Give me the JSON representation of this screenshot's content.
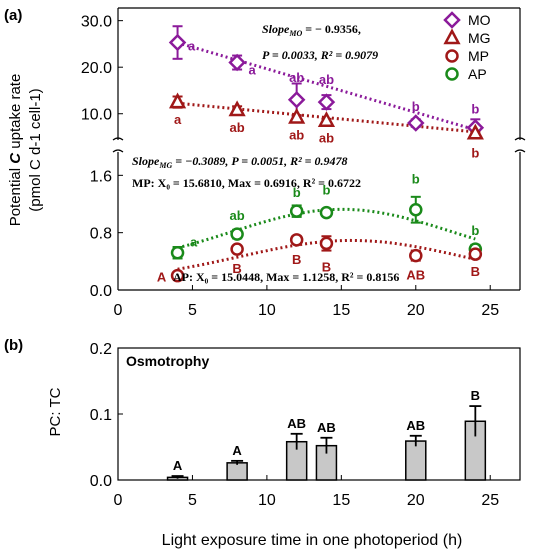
{
  "figure": {
    "ylabel_line1": "Potential ",
    "ylabel_C": "C",
    "ylabel_line1b": " uptake rate",
    "ylabel_line2": "(pmol C d-1 cell-1)",
    "xlabel": "Light exposure time in one photoperiod (h)"
  },
  "chart_data": [
    {
      "panel": "(a)",
      "type": "scatter",
      "x_ticks": [
        "0",
        "5",
        "10",
        "15",
        "20",
        "25"
      ],
      "xlim": [
        0,
        27
      ],
      "upper": {
        "ylim": [
          5.0,
          31.0
        ],
        "y_ticks": [
          "10.0",
          "20.0",
          "30.0"
        ],
        "series": [
          {
            "name": "MO",
            "marker": "diamond",
            "color": "#8b1a9a",
            "x": [
              4,
              8,
              12,
              14,
              20,
              24
            ],
            "y": [
              25.3,
              21.0,
              13.0,
              12.5,
              8.0,
              7.0
            ],
            "err": [
              3.5,
              1.5,
              3.5,
              1.5,
              0.8,
              1.8
            ],
            "letters": [
              "a",
              "a",
              "ab",
              "ab",
              "b",
              "b"
            ]
          },
          {
            "name": "MG",
            "marker": "triangle",
            "color": "#a01818",
            "x": [
              4,
              8,
              12,
              14,
              24
            ],
            "y": [
              12.5,
              10.8,
              9.2,
              8.5,
              5.8
            ],
            "err": [
              1.2,
              0.8,
              0.5,
              0.4,
              0.3
            ],
            "letters": [
              "a",
              "ab",
              "ab",
              "ab",
              "b"
            ]
          }
        ],
        "trend": [
          {
            "series": "MO",
            "color": "#8b1a9a",
            "slope": -0.9356,
            "intercept": 29.0
          },
          {
            "series": "MG",
            "color": "#a01818",
            "slope": -0.3089,
            "intercept": 13.5
          }
        ]
      },
      "lower": {
        "ylim": [
          0.0,
          1.8
        ],
        "y_ticks": [
          "0.0",
          "0.8",
          "1.6"
        ],
        "series": [
          {
            "name": "MP",
            "marker": "circle",
            "color": "#a01818",
            "x": [
              4,
              8,
              12,
              14,
              20,
              24
            ],
            "y": [
              0.2,
              0.57,
              0.7,
              0.65,
              0.48,
              0.5
            ],
            "err": [
              0.04,
              0.04,
              0.05,
              0.1,
              0.07,
              0.06
            ],
            "letters": [
              "A",
              "B",
              "B",
              "B",
              "AB",
              "B"
            ]
          },
          {
            "name": "AP",
            "marker": "circle",
            "color": "#1a8a1a",
            "x": [
              4,
              8,
              12,
              14,
              20,
              24
            ],
            "y": [
              0.52,
              0.78,
              1.1,
              1.08,
              1.12,
              0.57
            ],
            "err": [
              0.08,
              0.06,
              0.08,
              0.04,
              0.18,
              0.06
            ],
            "letters": [
              "a",
              "ab",
              "b",
              "b",
              "b",
              "b"
            ]
          }
        ],
        "fits": [
          {
            "series": "MP",
            "color": "#a01818",
            "x0": 15.681,
            "max": 0.6916
          },
          {
            "series": "AP",
            "color": "#1a8a1a",
            "x0": 15.0448,
            "max": 1.1258
          }
        ]
      },
      "legend": [
        "MO",
        "MG",
        "MP",
        "AP"
      ],
      "legend_position": "top-right",
      "annotations": {
        "mo_slope_label": "Slope",
        "mo_slope_sub": "MO",
        "mo_slope_val": " = − 0.9356,",
        "mo_p": "P = 0.0033, R² = 0.9079",
        "mg_slope_label": "Slope",
        "mg_slope_sub": "MG",
        "mg_stats": " = −0.3089, P = 0.0051, R² = 0.9478",
        "mp_stats": "MP: X₀ = 15.6810, Max = 0.6916, R² = 0.6722",
        "ap_stats": "AP: X₀ = 15.0448, Max = 1.1258, R² = 0.8156"
      }
    },
    {
      "panel": "(b)",
      "type": "bar",
      "ylabel": "PC: TC",
      "inner_title": "Osmotrophy",
      "ylim": [
        0.0,
        0.2
      ],
      "y_ticks": [
        "0.0",
        "0.1",
        "0.2"
      ],
      "x_ticks": [
        "0",
        "5",
        "10",
        "15",
        "20",
        "25"
      ],
      "xlim": [
        0,
        27
      ],
      "x": [
        4,
        8,
        12,
        14,
        20,
        24
      ],
      "values": [
        0.004,
        0.026,
        0.058,
        0.052,
        0.059,
        0.089
      ],
      "err": [
        0.002,
        0.003,
        0.012,
        0.012,
        0.008,
        0.023
      ],
      "letters": [
        "A",
        "A",
        "AB",
        "AB",
        "AB",
        "B"
      ],
      "bar_color": "#c8c8c8"
    }
  ]
}
